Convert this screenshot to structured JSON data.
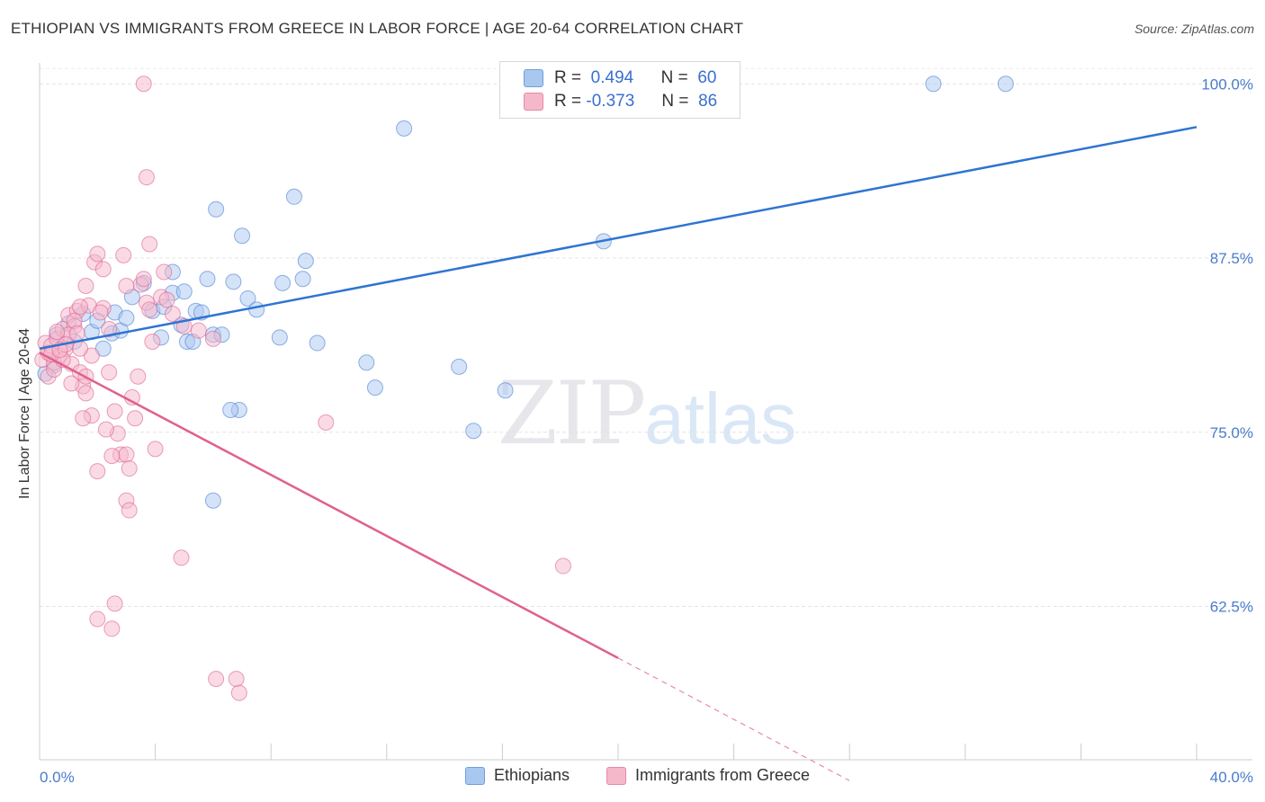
{
  "header": {
    "title": "ETHIOPIAN VS IMMIGRANTS FROM GREECE IN LABOR FORCE | AGE 20-64 CORRELATION CHART",
    "source": "Source: ZipAtlas.com"
  },
  "watermark": {
    "zip": "ZIP",
    "atlas": "atlas"
  },
  "legend_box": {
    "rows": [
      {
        "r_label": "R =",
        "r_value": "0.494",
        "n_label": "N =",
        "n_value": "60",
        "color": "#a9c8f0"
      },
      {
        "r_label": "R =",
        "r_value": "-0.373",
        "n_label": "N =",
        "n_value": "86",
        "color": "#f5b8cb"
      }
    ]
  },
  "bottom_legend": {
    "items": [
      {
        "label": "Ethiopians",
        "color": "#a9c8f0"
      },
      {
        "label": "Immigrants from Greece",
        "color": "#f5b8cb"
      }
    ]
  },
  "chart_data": {
    "type": "scatter",
    "title": "ETHIOPIAN VS IMMIGRANTS FROM GREECE IN LABOR FORCE | AGE 20-64 CORRELATION CHART",
    "xlabel": "",
    "ylabel": "In Labor Force | Age 20-64",
    "xlim": [
      0,
      40
    ],
    "ylim": [
      51.5,
      101.5
    ],
    "x_tick_labels": [
      {
        "value": 0,
        "label": "0.0%"
      },
      {
        "value": 40,
        "label": "40.0%"
      }
    ],
    "y_ticks": [
      {
        "value": 100,
        "label": "100.0%"
      },
      {
        "value": 87.5,
        "label": "87.5%"
      },
      {
        "value": 75,
        "label": "75.0%"
      },
      {
        "value": 62.5,
        "label": "62.5%"
      }
    ],
    "grid": true,
    "series": [
      {
        "name": "Ethiopians",
        "color": "#4a7fd4",
        "fill": "#a9c8f0",
        "trend": {
          "x": [
            0,
            40
          ],
          "y": [
            81.0,
            96.9
          ],
          "dashed_from": null
        },
        "points": [
          [
            0.2,
            79.2
          ],
          [
            0.6,
            82.0
          ],
          [
            1.0,
            82.8
          ],
          [
            1.5,
            83.5
          ],
          [
            1.8,
            82.2
          ],
          [
            2.0,
            83.0
          ],
          [
            2.2,
            81.0
          ],
          [
            2.5,
            82.1
          ],
          [
            2.6,
            83.6
          ],
          [
            2.8,
            82.3
          ],
          [
            3.2,
            84.7
          ],
          [
            3.6,
            85.7
          ],
          [
            3.9,
            83.7
          ],
          [
            4.2,
            81.8
          ],
          [
            4.3,
            84.0
          ],
          [
            4.6,
            85.0
          ],
          [
            4.6,
            86.5
          ],
          [
            4.9,
            82.7
          ],
          [
            5.0,
            85.1
          ],
          [
            5.1,
            81.5
          ],
          [
            5.3,
            81.5
          ],
          [
            5.4,
            83.7
          ],
          [
            5.6,
            83.6
          ],
          [
            5.8,
            86.0
          ],
          [
            6.0,
            82.0
          ],
          [
            6.3,
            82.0
          ],
          [
            6.1,
            91.0
          ],
          [
            6.7,
            85.8
          ],
          [
            7.0,
            89.1
          ],
          [
            7.2,
            84.6
          ],
          [
            7.5,
            83.8
          ],
          [
            6.9,
            76.6
          ],
          [
            6.6,
            76.6
          ],
          [
            8.4,
            85.7
          ],
          [
            8.8,
            91.9
          ],
          [
            9.1,
            86.0
          ],
          [
            9.2,
            87.3
          ],
          [
            9.6,
            81.4
          ],
          [
            8.3,
            81.8
          ],
          [
            11.3,
            80.0
          ],
          [
            11.6,
            78.2
          ],
          [
            12.6,
            96.8
          ],
          [
            14.5,
            79.7
          ],
          [
            15.0,
            75.1
          ],
          [
            16.1,
            78.0
          ],
          [
            6.0,
            70.1
          ],
          [
            19.5,
            88.7
          ],
          [
            30.9,
            100.0
          ],
          [
            33.4,
            100.0
          ],
          [
            0.5,
            79.8
          ],
          [
            1.2,
            81.5
          ],
          [
            3.0,
            83.2
          ]
        ]
      },
      {
        "name": "Immigrants from Greece",
        "color": "#e0608e",
        "fill": "#f5b8cb",
        "trend": {
          "x": [
            0,
            20
          ],
          "y": [
            80.7,
            58.8
          ],
          "dashed_x": [
            20,
            28.0
          ],
          "dashed_y": [
            58.8,
            50.0
          ]
        },
        "points": [
          [
            0.1,
            80.2
          ],
          [
            0.2,
            81.4
          ],
          [
            0.3,
            80.7
          ],
          [
            0.4,
            81.2
          ],
          [
            0.5,
            80.0
          ],
          [
            0.6,
            81.7
          ],
          [
            0.7,
            80.5
          ],
          [
            0.8,
            82.4
          ],
          [
            0.9,
            81.0
          ],
          [
            1.0,
            83.4
          ],
          [
            1.1,
            79.9
          ],
          [
            1.2,
            82.6
          ],
          [
            1.3,
            83.7
          ],
          [
            1.4,
            79.3
          ],
          [
            1.5,
            78.3
          ],
          [
            1.6,
            77.8
          ],
          [
            1.7,
            84.1
          ],
          [
            1.8,
            80.5
          ],
          [
            1.9,
            87.2
          ],
          [
            2.0,
            87.8
          ],
          [
            2.2,
            86.7
          ],
          [
            2.4,
            82.4
          ],
          [
            2.6,
            76.5
          ],
          [
            2.7,
            74.9
          ],
          [
            2.8,
            73.4
          ],
          [
            3.0,
            73.4
          ],
          [
            3.1,
            72.4
          ],
          [
            3.2,
            77.5
          ],
          [
            3.3,
            76.0
          ],
          [
            3.4,
            79.0
          ],
          [
            3.5,
            85.6
          ],
          [
            3.6,
            86.0
          ],
          [
            3.7,
            84.3
          ],
          [
            3.8,
            83.8
          ],
          [
            3.9,
            81.5
          ],
          [
            4.0,
            73.8
          ],
          [
            4.2,
            84.7
          ],
          [
            4.4,
            84.5
          ],
          [
            4.6,
            83.5
          ],
          [
            5.0,
            82.6
          ],
          [
            5.5,
            82.3
          ],
          [
            6.0,
            81.7
          ],
          [
            3.0,
            70.1
          ],
          [
            3.1,
            69.4
          ],
          [
            2.0,
            72.2
          ],
          [
            1.8,
            76.2
          ],
          [
            2.3,
            75.2
          ],
          [
            2.5,
            73.3
          ],
          [
            1.6,
            85.5
          ],
          [
            1.4,
            84.0
          ],
          [
            3.7,
            93.3
          ],
          [
            3.8,
            88.5
          ],
          [
            4.9,
            66.0
          ],
          [
            2.0,
            61.6
          ],
          [
            2.5,
            60.9
          ],
          [
            2.6,
            62.7
          ],
          [
            6.1,
            57.3
          ],
          [
            6.8,
            57.3
          ],
          [
            6.9,
            56.3
          ],
          [
            9.9,
            75.7
          ],
          [
            18.1,
            65.4
          ],
          [
            3.6,
            100.0
          ],
          [
            0.3,
            79.0
          ],
          [
            0.5,
            79.5
          ],
          [
            0.8,
            80.2
          ],
          [
            1.0,
            82.0
          ],
          [
            1.2,
            83.0
          ],
          [
            1.4,
            81.0
          ],
          [
            0.6,
            82.2
          ],
          [
            0.9,
            81.3
          ],
          [
            1.1,
            78.5
          ],
          [
            2.2,
            83.9
          ],
          [
            2.4,
            79.3
          ],
          [
            1.5,
            76.0
          ],
          [
            4.3,
            86.5
          ],
          [
            3.0,
            85.5
          ],
          [
            0.4,
            80.6
          ],
          [
            0.7,
            80.9
          ],
          [
            1.3,
            82.1
          ],
          [
            1.6,
            79.0
          ],
          [
            2.1,
            83.6
          ],
          [
            2.9,
            87.7
          ]
        ]
      }
    ]
  }
}
